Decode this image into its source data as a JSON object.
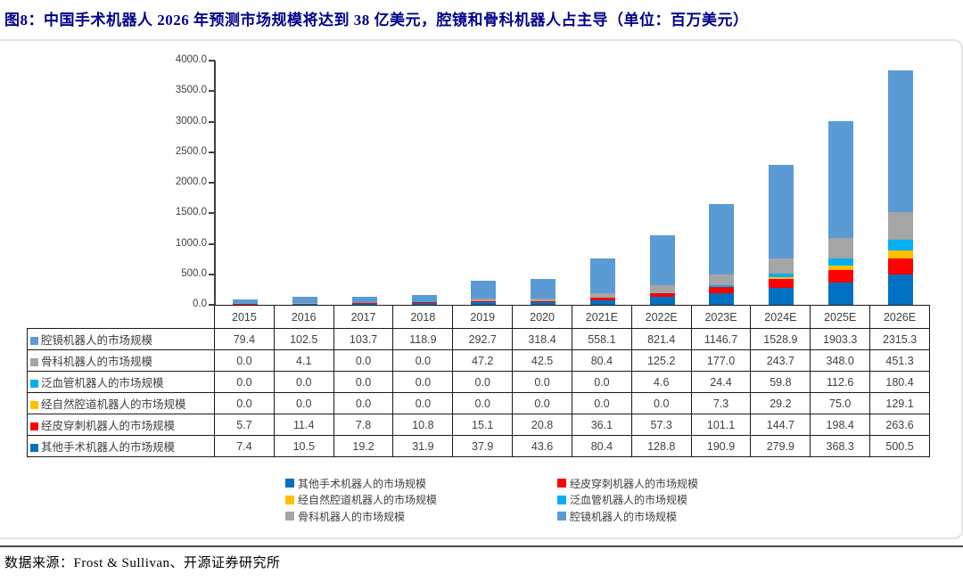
{
  "figure": {
    "title": "图8：中国手术机器人 2026 年预测市场规模将达到 38 亿美元，腔镜和骨科机器人占主导（单位：百万美元）",
    "source": "数据来源：Frost & Sullivan、开源证券研究所",
    "title_color": "#00008B"
  },
  "chart_data": {
    "type": "bar",
    "stacked": true,
    "title": "中国手术机器人 2026 年预测市场规模将达到 38 亿美元，腔镜和骨科机器人占主导",
    "unit": "百万美元",
    "xlabel": "",
    "ylabel": "",
    "ylim": [
      0,
      4000
    ],
    "ytick_step": 500,
    "ytick_labels": [
      "4000.0",
      "3500.0",
      "3000.0",
      "2500.0",
      "2000.0",
      "1500.0",
      "1000.0",
      "500.0",
      "0.0"
    ],
    "grid": false,
    "legend_position": "bottom",
    "categories": [
      "2015",
      "2016",
      "2017",
      "2018",
      "2019",
      "2020",
      "2021E",
      "2022E",
      "2023E",
      "2024E",
      "2025E",
      "2026E"
    ],
    "series": [
      {
        "name": "腔镜机器人的市场规模",
        "color": "#5B9BD5",
        "values": [
          79.4,
          102.5,
          103.7,
          118.9,
          292.7,
          318.4,
          558.1,
          821.4,
          1146.7,
          1528.9,
          1903.3,
          2315.3
        ]
      },
      {
        "name": "骨科机器人的市场规模",
        "color": "#A5A5A5",
        "values": [
          0.0,
          4.1,
          0.0,
          0.0,
          47.2,
          42.5,
          80.4,
          125.2,
          177.0,
          243.7,
          348.0,
          451.3
        ]
      },
      {
        "name": "泛血管机器人的市场规模",
        "color": "#00B0F0",
        "values": [
          0.0,
          0.0,
          0.0,
          0.0,
          0.0,
          0.0,
          0.0,
          4.6,
          24.4,
          59.8,
          112.6,
          180.4
        ]
      },
      {
        "name": "经自然腔道机器人的市场规模",
        "color": "#FFC000",
        "values": [
          0.0,
          0.0,
          0.0,
          0.0,
          0.0,
          0.0,
          0.0,
          0.0,
          7.3,
          29.2,
          75.0,
          129.1
        ]
      },
      {
        "name": "经皮穿刺机器人的市场规模",
        "color": "#FF0000",
        "values": [
          5.7,
          11.4,
          7.8,
          10.8,
          15.1,
          20.8,
          36.1,
          57.3,
          101.1,
          144.7,
          198.4,
          263.6
        ]
      },
      {
        "name": "其他手术机器人的市场规模",
        "color": "#0070C0",
        "values": [
          7.4,
          10.5,
          19.2,
          31.9,
          37.9,
          43.6,
          80.4,
          128.8,
          190.9,
          279.9,
          368.3,
          500.5
        ]
      }
    ],
    "stack_order_bottom_to_top": [
      "其他手术机器人的市场规模",
      "经皮穿刺机器人的市场规模",
      "经自然腔道机器人的市场规模",
      "泛血管机器人的市场规模",
      "骨科机器人的市场规模",
      "腔镜机器人的市场规模"
    ]
  },
  "legend": {
    "columns": [
      [
        "其他手术机器人的市场规模",
        "经自然腔道机器人的市场规模",
        "骨科机器人的市场规模"
      ],
      [
        "经皮穿刺机器人的市场规模",
        "泛血管机器人的市场规模",
        "腔镜机器人的市场规模"
      ]
    ]
  },
  "colors": {
    "axis": "#404040",
    "table_border": "#1a1a1a",
    "table_text": "#404040",
    "divider": "#4a4a4a"
  }
}
